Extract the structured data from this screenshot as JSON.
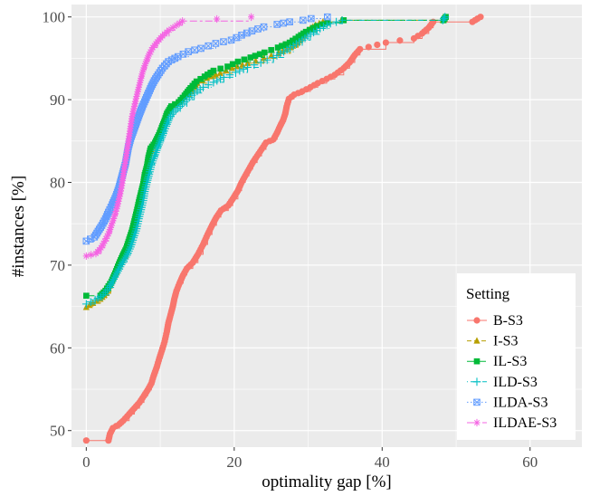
{
  "chart_data": {
    "type": "line",
    "title": "",
    "xlabel": "optimality gap [%]",
    "ylabel": "#instances [%]",
    "xlim": [
      -2,
      67
    ],
    "ylim": [
      48,
      101.5
    ],
    "x_ticks": [
      0,
      20,
      40,
      60
    ],
    "y_ticks": [
      50,
      60,
      70,
      80,
      90,
      100
    ],
    "grid": true,
    "legend": {
      "title": "Setting",
      "position": "bottom-right"
    },
    "series": [
      {
        "name": "B-S3",
        "color": "#F8766D",
        "marker": "circle",
        "dash": "solid",
        "points": [
          [
            0,
            48.8
          ],
          [
            3,
            48.8
          ],
          [
            3.2,
            49.6
          ],
          [
            3.6,
            50.3
          ],
          [
            4.5,
            50.8
          ],
          [
            5,
            51.2
          ],
          [
            5.8,
            52
          ],
          [
            6.5,
            52.7
          ],
          [
            7.2,
            53.4
          ],
          [
            7.8,
            54.2
          ],
          [
            8.3,
            54.9
          ],
          [
            8.8,
            55.7
          ],
          [
            9.1,
            56.6
          ],
          [
            9.5,
            57.6
          ],
          [
            9.9,
            58.8
          ],
          [
            10.3,
            59.9
          ],
          [
            10.6,
            60.8
          ],
          [
            10.9,
            62
          ],
          [
            11.1,
            63
          ],
          [
            11.4,
            64
          ],
          [
            11.7,
            65
          ],
          [
            11.9,
            65.9
          ],
          [
            12.2,
            66.9
          ],
          [
            12.6,
            67.8
          ],
          [
            13.1,
            68.8
          ],
          [
            13.6,
            69.6
          ],
          [
            14.4,
            70.3
          ],
          [
            15.1,
            71.3
          ],
          [
            15.8,
            72.5
          ],
          [
            16.4,
            73.7
          ],
          [
            17,
            74.8
          ],
          [
            17.6,
            75.8
          ],
          [
            18.2,
            76.6
          ],
          [
            19.2,
            77.2
          ],
          [
            19.8,
            78
          ],
          [
            20.5,
            79
          ],
          [
            21,
            80
          ],
          [
            21.5,
            80.8
          ],
          [
            22,
            81.6
          ],
          [
            22.5,
            82.4
          ],
          [
            23.1,
            83.2
          ],
          [
            23.7,
            84
          ],
          [
            24.3,
            84.8
          ],
          [
            25.3,
            85.2
          ],
          [
            25.8,
            86
          ],
          [
            26.2,
            86.8
          ],
          [
            26.6,
            87.5
          ],
          [
            26.9,
            88.3
          ],
          [
            27.1,
            89.2
          ],
          [
            27.4,
            90.1
          ],
          [
            28.1,
            90.6
          ],
          [
            29.2,
            91
          ],
          [
            30.3,
            91.5
          ],
          [
            31.3,
            92
          ],
          [
            32.5,
            92.5
          ],
          [
            33.6,
            93
          ],
          [
            34.8,
            93.8
          ],
          [
            35.6,
            94.5
          ],
          [
            36.3,
            95.4
          ],
          [
            37,
            96.1
          ],
          [
            40.5,
            96.9
          ],
          [
            44.3,
            97.4
          ],
          [
            45.4,
            98
          ],
          [
            46.3,
            98.7
          ],
          [
            46.9,
            99.4
          ],
          [
            52.2,
            99.4
          ],
          [
            52.9,
            99.8
          ],
          [
            53.3,
            100
          ]
        ]
      },
      {
        "name": "I-S3",
        "color": "#B79F00",
        "marker": "triangle",
        "dash": "dashed",
        "points": [
          [
            0,
            64.9
          ],
          [
            0.9,
            65.4
          ],
          [
            1.9,
            65.9
          ],
          [
            2.7,
            66.6
          ],
          [
            3.3,
            67.8
          ],
          [
            3.8,
            68.8
          ],
          [
            4.4,
            69.8
          ],
          [
            5,
            70.8
          ],
          [
            5.6,
            72
          ],
          [
            6.1,
            73.3
          ],
          [
            6.5,
            74.5
          ],
          [
            6.8,
            75.7
          ],
          [
            7.1,
            76.8
          ],
          [
            7.3,
            77.9
          ],
          [
            7.6,
            79
          ],
          [
            7.8,
            80
          ],
          [
            8,
            81
          ],
          [
            8.2,
            82
          ],
          [
            8.4,
            83.1
          ],
          [
            8.8,
            84
          ],
          [
            9.3,
            84.8
          ],
          [
            9.7,
            85.6
          ],
          [
            10,
            86.5
          ],
          [
            10.4,
            87.4
          ],
          [
            10.8,
            88.3
          ],
          [
            11.2,
            89
          ],
          [
            12.2,
            89.6
          ],
          [
            13.2,
            90.4
          ],
          [
            14.2,
            91
          ],
          [
            15,
            92
          ],
          [
            16.3,
            92.6
          ],
          [
            18.1,
            93.2
          ],
          [
            19.7,
            93.8
          ],
          [
            21.8,
            94.4
          ],
          [
            24,
            95
          ],
          [
            26,
            95.6
          ],
          [
            27.6,
            96.3
          ],
          [
            28.6,
            96.9
          ],
          [
            29.2,
            97.6
          ],
          [
            29.8,
            98.2
          ],
          [
            30.3,
            98.6
          ],
          [
            31,
            99
          ],
          [
            32,
            99.4
          ],
          [
            34.5,
            99.6
          ],
          [
            48.2,
            99.6
          ],
          [
            48.5,
            100
          ]
        ]
      },
      {
        "name": "IL-S3",
        "color": "#00BA38",
        "marker": "square",
        "dash": "longdash",
        "points": [
          [
            0,
            66.3
          ],
          [
            1.9,
            66.3
          ],
          [
            2.6,
            66.9
          ],
          [
            3.4,
            68
          ],
          [
            3.9,
            69
          ],
          [
            4.4,
            70.1
          ],
          [
            4.9,
            71.1
          ],
          [
            5.4,
            72
          ],
          [
            5.8,
            73.1
          ],
          [
            6.2,
            74.2
          ],
          [
            6.5,
            75.3
          ],
          [
            6.8,
            76.4
          ],
          [
            7.1,
            77.6
          ],
          [
            7.4,
            78.7
          ],
          [
            7.7,
            79.8
          ],
          [
            7.9,
            80.9
          ],
          [
            8.2,
            81.9
          ],
          [
            8.4,
            83
          ],
          [
            8.7,
            84.1
          ],
          [
            9.3,
            84.8
          ],
          [
            9.8,
            85.7
          ],
          [
            10.2,
            86.6
          ],
          [
            10.6,
            87.5
          ],
          [
            10.9,
            88.3
          ],
          [
            11.5,
            89.2
          ],
          [
            12.5,
            89.7
          ],
          [
            13.3,
            90.5
          ],
          [
            14.1,
            91.4
          ],
          [
            14.9,
            92.2
          ],
          [
            16,
            92.8
          ],
          [
            17.2,
            93.5
          ],
          [
            19.1,
            94
          ],
          [
            20.5,
            94.6
          ],
          [
            22.2,
            95.1
          ],
          [
            24.1,
            95.7
          ],
          [
            25.9,
            96.3
          ],
          [
            27.5,
            96.9
          ],
          [
            28.7,
            97.6
          ],
          [
            29.7,
            98.2
          ],
          [
            31.2,
            98.9
          ],
          [
            32.6,
            99.3
          ],
          [
            34.8,
            99.6
          ],
          [
            48.3,
            99.6
          ],
          [
            48.6,
            100
          ]
        ]
      },
      {
        "name": "ILD-S3",
        "color": "#00BFC4",
        "marker": "plus",
        "dash": "dotdash",
        "points": [
          [
            0,
            65.3
          ],
          [
            1.2,
            65.8
          ],
          [
            2.3,
            66.4
          ],
          [
            3.1,
            67.3
          ],
          [
            3.7,
            68.3
          ],
          [
            4.3,
            69.3
          ],
          [
            4.9,
            70.3
          ],
          [
            5.5,
            71.2
          ],
          [
            6,
            72.2
          ],
          [
            6.4,
            73.3
          ],
          [
            6.8,
            74.4
          ],
          [
            7.1,
            75.6
          ],
          [
            7.4,
            76.7
          ],
          [
            7.7,
            77.8
          ],
          [
            7.9,
            78.9
          ],
          [
            8.2,
            80
          ],
          [
            8.5,
            81
          ],
          [
            8.8,
            82.1
          ],
          [
            9.2,
            83.1
          ],
          [
            9.6,
            84.1
          ],
          [
            10,
            85
          ],
          [
            10.4,
            85.9
          ],
          [
            10.8,
            86.8
          ],
          [
            11.2,
            87.7
          ],
          [
            11.8,
            88.5
          ],
          [
            12.7,
            89.2
          ],
          [
            13.6,
            90
          ],
          [
            14.6,
            90.8
          ],
          [
            15.8,
            91.5
          ],
          [
            17.2,
            92.1
          ],
          [
            18.6,
            92.7
          ],
          [
            20.2,
            93.3
          ],
          [
            21.8,
            93.9
          ],
          [
            23.6,
            94.5
          ],
          [
            25.3,
            95.1
          ],
          [
            26.7,
            95.8
          ],
          [
            28,
            96.5
          ],
          [
            29.2,
            97.2
          ],
          [
            30.3,
            97.9
          ],
          [
            31.6,
            98.6
          ],
          [
            33,
            99.2
          ],
          [
            34.6,
            99.6
          ],
          [
            48.2,
            99.6
          ],
          [
            48.5,
            100
          ]
        ]
      },
      {
        "name": "ILDA-S3",
        "color": "#619CFF",
        "marker": "square-x",
        "dash": "dotted",
        "points": [
          [
            0,
            72.9
          ],
          [
            1.1,
            73.4
          ],
          [
            1.6,
            74.1
          ],
          [
            2.1,
            74.8
          ],
          [
            2.6,
            75.6
          ],
          [
            3,
            76.4
          ],
          [
            3.5,
            77.3
          ],
          [
            4,
            78.3
          ],
          [
            4.4,
            79.3
          ],
          [
            4.7,
            80.3
          ],
          [
            5,
            81.3
          ],
          [
            5.3,
            82.3
          ],
          [
            5.5,
            83.3
          ],
          [
            5.7,
            84.3
          ],
          [
            6,
            85.3
          ],
          [
            6.4,
            86.3
          ],
          [
            6.8,
            87.3
          ],
          [
            7.2,
            88.3
          ],
          [
            7.6,
            89.2
          ],
          [
            8,
            90
          ],
          [
            8.4,
            90.8
          ],
          [
            8.8,
            91.6
          ],
          [
            9.2,
            92.3
          ],
          [
            9.7,
            93
          ],
          [
            10.3,
            93.8
          ],
          [
            11.1,
            94.6
          ],
          [
            12.4,
            95.2
          ],
          [
            13.8,
            95.8
          ],
          [
            15.5,
            96.2
          ],
          [
            17.5,
            96.8
          ],
          [
            19.6,
            97.2
          ],
          [
            21,
            97.8
          ],
          [
            22.4,
            98.3
          ],
          [
            24,
            98.8
          ],
          [
            25.8,
            99.1
          ],
          [
            27.5,
            99.4
          ],
          [
            29.3,
            99.6
          ],
          [
            30.4,
            99.8
          ],
          [
            32.6,
            100
          ]
        ]
      },
      {
        "name": "ILDAE-S3",
        "color": "#F564E3",
        "marker": "asterisk",
        "dash": "twodash",
        "points": [
          [
            0,
            71.1
          ],
          [
            1.3,
            71.4
          ],
          [
            2,
            72.1
          ],
          [
            2.5,
            72.9
          ],
          [
            3,
            73.8
          ],
          [
            3.4,
            74.8
          ],
          [
            3.8,
            75.9
          ],
          [
            4.2,
            77.1
          ],
          [
            4.5,
            78.3
          ],
          [
            4.8,
            79.6
          ],
          [
            5,
            80.8
          ],
          [
            5.2,
            82
          ],
          [
            5.4,
            83.2
          ],
          [
            5.6,
            84.4
          ],
          [
            5.8,
            85.6
          ],
          [
            6,
            86.8
          ],
          [
            6.2,
            88
          ],
          [
            6.5,
            89.2
          ],
          [
            6.8,
            90.4
          ],
          [
            7.1,
            91.5
          ],
          [
            7.4,
            92.6
          ],
          [
            7.7,
            93.6
          ],
          [
            8.1,
            94.6
          ],
          [
            8.5,
            95.5
          ],
          [
            9,
            96.3
          ],
          [
            9.6,
            97
          ],
          [
            10.3,
            97.7
          ],
          [
            11.2,
            98.4
          ],
          [
            12.2,
            99
          ],
          [
            13,
            99.5
          ],
          [
            22.3,
            100
          ]
        ]
      }
    ]
  }
}
